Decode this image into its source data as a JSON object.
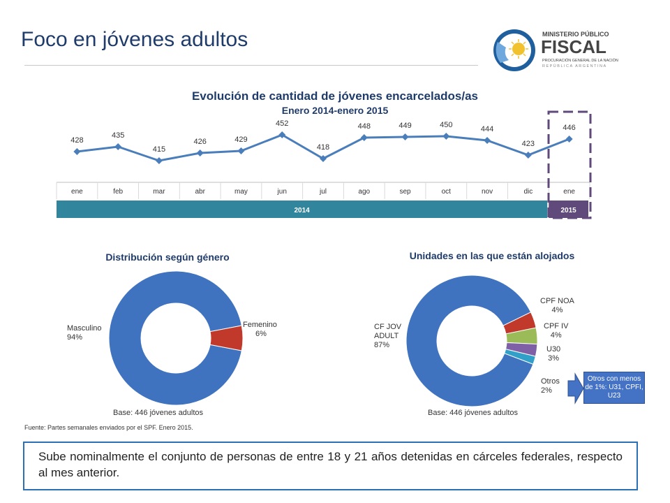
{
  "slide": {
    "title": "Foco en jóvenes adultos"
  },
  "logo": {
    "line1": "MINISTERIO PÚBLICO",
    "line2": "FISCAL",
    "line3": "PROCURACIÓN GENERAL DE LA NACIÓN",
    "line4": "REPÚBLICA ARGENTINA"
  },
  "colors": {
    "title": "#1f3b6a",
    "line": "#4a7ebb",
    "year2014": "#31859c",
    "year2015": "#604a7b",
    "male": "#3f73bf",
    "female": "#c0392b",
    "cpf_noa": "#c0392b",
    "cpf_iv": "#9bbb59",
    "u30": "#7f5fa6",
    "otros": "#31a0c8"
  },
  "chart_data": [
    {
      "type": "line",
      "title": "Evolución de cantidad de jóvenes encarcelados/as",
      "subtitle": "Enero 2014-enero 2015",
      "categories": [
        "ene",
        "feb",
        "mar",
        "abr",
        "may",
        "jun",
        "jul",
        "ago",
        "sep",
        "oct",
        "nov",
        "dic",
        "ene"
      ],
      "values": [
        428,
        435,
        415,
        426,
        429,
        452,
        418,
        448,
        449,
        450,
        444,
        423,
        446
      ],
      "year_groups": [
        {
          "label": "2014",
          "span": 12
        },
        {
          "label": "2015",
          "span": 1
        }
      ],
      "xlabel": "",
      "ylabel": ""
    },
    {
      "type": "pie",
      "title": "Distribución según género",
      "slices": [
        {
          "label": "Masculino",
          "value": 94,
          "text": "94%"
        },
        {
          "label": "Femenino",
          "value": 6,
          "text": "6%"
        }
      ],
      "note": "Base: 446 jóvenes adultos"
    },
    {
      "type": "pie",
      "title": "Unidades en las que están alojados",
      "slices": [
        {
          "label": "CF JOV ADULT",
          "value": 87,
          "text": "87%"
        },
        {
          "label": "CPF NOA",
          "value": 4,
          "text": "4%"
        },
        {
          "label": "CPF IV",
          "value": 4,
          "text": "4%"
        },
        {
          "label": "U30",
          "value": 3,
          "text": "3%"
        },
        {
          "label": "Otros",
          "value": 2,
          "text": "2%"
        }
      ],
      "note": "Base: 446 jóvenes adultos",
      "callout": "Otros con menos de 1%: U31, CPFI, U23"
    }
  ],
  "source": "Fuente: Partes semanales enviados por el SPF. Enero 2015.",
  "summary": "Sube nominalmente el conjunto de personas de entre 18 y 21 años detenidas en cárceles federales, respecto al mes anterior."
}
